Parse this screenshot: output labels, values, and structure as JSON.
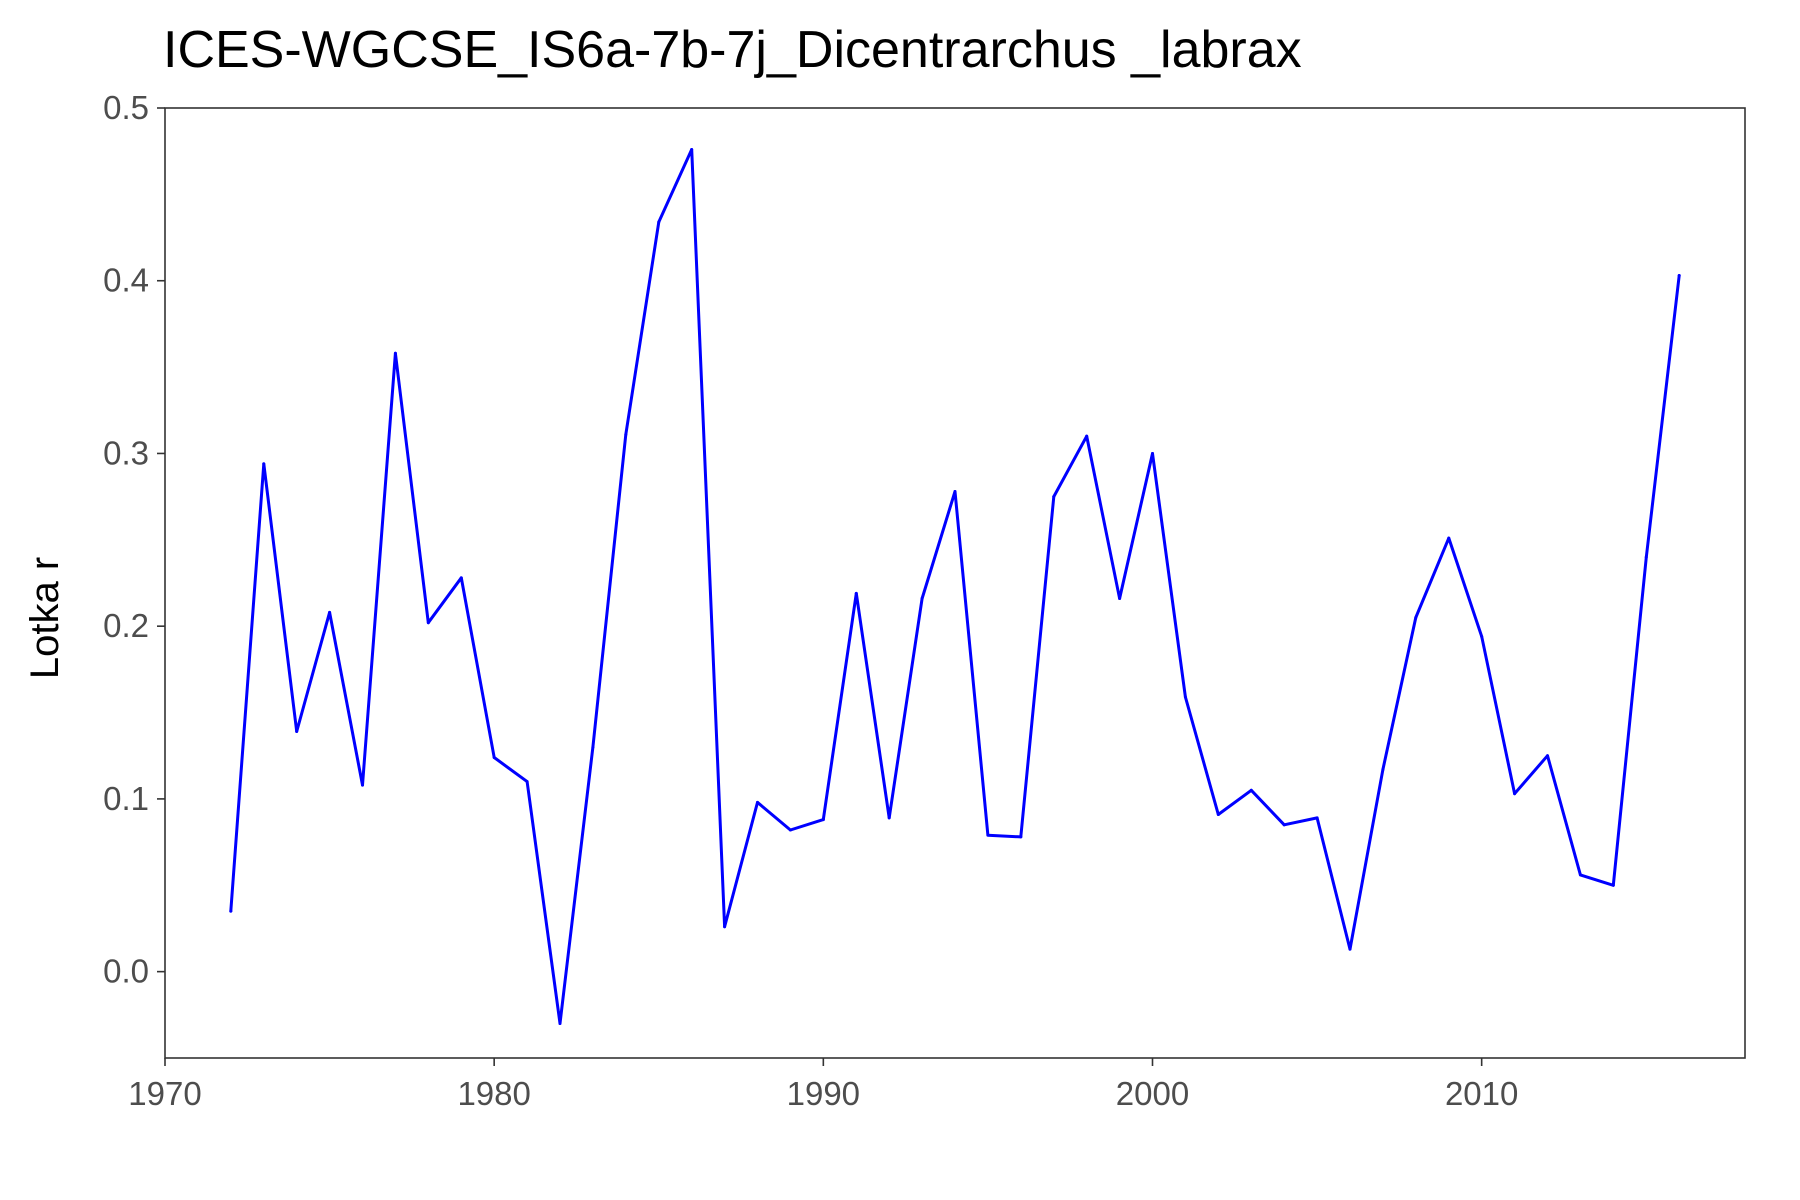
{
  "chart_data": {
    "type": "line",
    "title": "ICES-WGCSE_IS6a-7b-7j_Dicentrarchus _labrax",
    "xlabel": "",
    "ylabel": "Lotka r",
    "xlim": [
      1970,
      2018
    ],
    "ylim": [
      -0.05,
      0.5
    ],
    "x_ticks": [
      1970,
      1980,
      1990,
      2000,
      2010
    ],
    "x_tick_labels": [
      "1970",
      "1980",
      "1990",
      "2000",
      "2010"
    ],
    "y_ticks": [
      0.0,
      0.1,
      0.2,
      0.3,
      0.4,
      0.5
    ],
    "y_tick_labels": [
      "0.0",
      "0.1",
      "0.2",
      "0.3",
      "0.4",
      "0.5"
    ],
    "grid": false,
    "legend": "none",
    "color": "#0000ff",
    "series": [
      {
        "x": [
          1972,
          1973,
          1974,
          1975,
          1976,
          1977,
          1978,
          1979,
          1980,
          1981,
          1982,
          1983,
          1984,
          1985,
          1986,
          1987,
          1988,
          1989,
          1990,
          1991,
          1992,
          1993,
          1994,
          1995,
          1996,
          1997,
          1998,
          1999,
          2000,
          2001,
          2002,
          2003,
          2004,
          2005,
          2006,
          2007,
          2008,
          2009,
          2010,
          2011,
          2012,
          2013,
          2014,
          2015,
          2016
        ],
        "values": [
          0.035,
          0.294,
          0.139,
          0.208,
          0.108,
          0.358,
          0.202,
          0.228,
          0.124,
          0.11,
          -0.03,
          0.13,
          0.311,
          0.434,
          0.476,
          0.026,
          0.098,
          0.082,
          0.088,
          0.219,
          0.089,
          0.216,
          0.278,
          0.079,
          0.078,
          0.275,
          0.31,
          0.216,
          0.3,
          0.159,
          0.091,
          0.105,
          0.085,
          0.089,
          0.013,
          0.117,
          0.205,
          0.251,
          0.194,
          0.103,
          0.125,
          0.056,
          0.05,
          0.24,
          0.403
        ]
      }
    ]
  }
}
